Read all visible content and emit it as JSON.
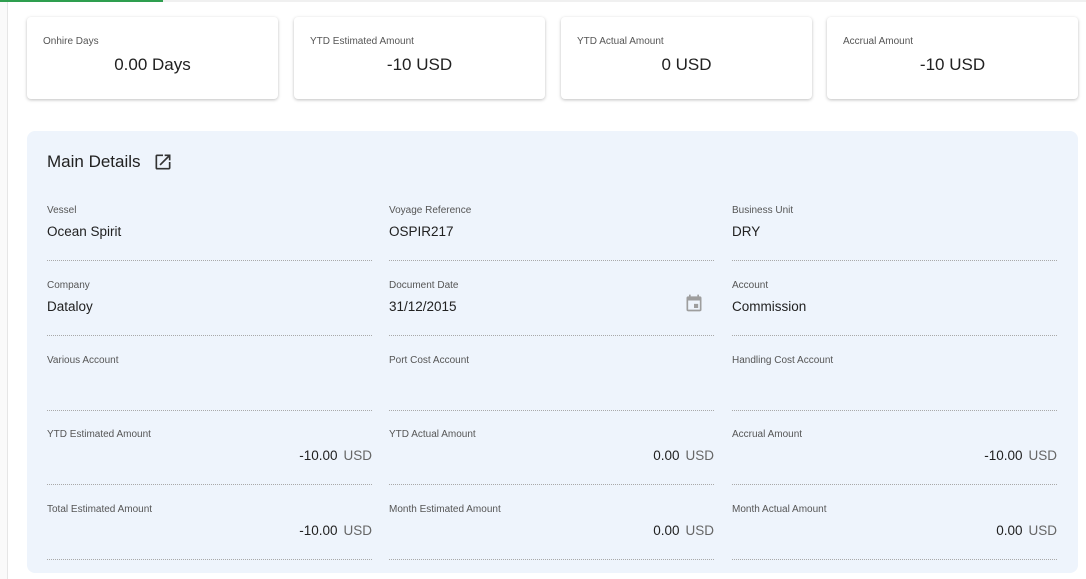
{
  "progress_percent": 15,
  "summary_cards": [
    {
      "label": "Onhire Days",
      "value": "0.00 Days"
    },
    {
      "label": "YTD Estimated Amount",
      "value": "-10 USD"
    },
    {
      "label": "YTD Actual Amount",
      "value": "0 USD"
    },
    {
      "label": "Accrual Amount",
      "value": "-10 USD"
    }
  ],
  "main_details": {
    "title": "Main Details",
    "fields": [
      {
        "label": "Vessel",
        "value": "Ocean Spirit"
      },
      {
        "label": "Voyage Reference",
        "value": "OSPIR217"
      },
      {
        "label": "Business Unit",
        "value": "DRY"
      },
      {
        "label": "Company",
        "value": "Dataloy"
      },
      {
        "label": "Document Date",
        "value": "31/12/2015"
      },
      {
        "label": "Account",
        "value": "Commission"
      },
      {
        "label": "Various Account",
        "value": ""
      },
      {
        "label": "Port Cost Account",
        "value": ""
      },
      {
        "label": "Handling Cost Account",
        "value": ""
      },
      {
        "label": "YTD Estimated Amount",
        "amount": "-10.00",
        "currency": "USD"
      },
      {
        "label": "YTD Actual Amount",
        "amount": "0.00",
        "currency": "USD"
      },
      {
        "label": "Accrual Amount",
        "amount": "-10.00",
        "currency": "USD"
      },
      {
        "label": "Total Estimated Amount",
        "amount": "-10.00",
        "currency": "USD"
      },
      {
        "label": "Month Estimated Amount",
        "amount": "0.00",
        "currency": "USD"
      },
      {
        "label": "Month Actual Amount",
        "amount": "0.00",
        "currency": "USD"
      }
    ]
  }
}
